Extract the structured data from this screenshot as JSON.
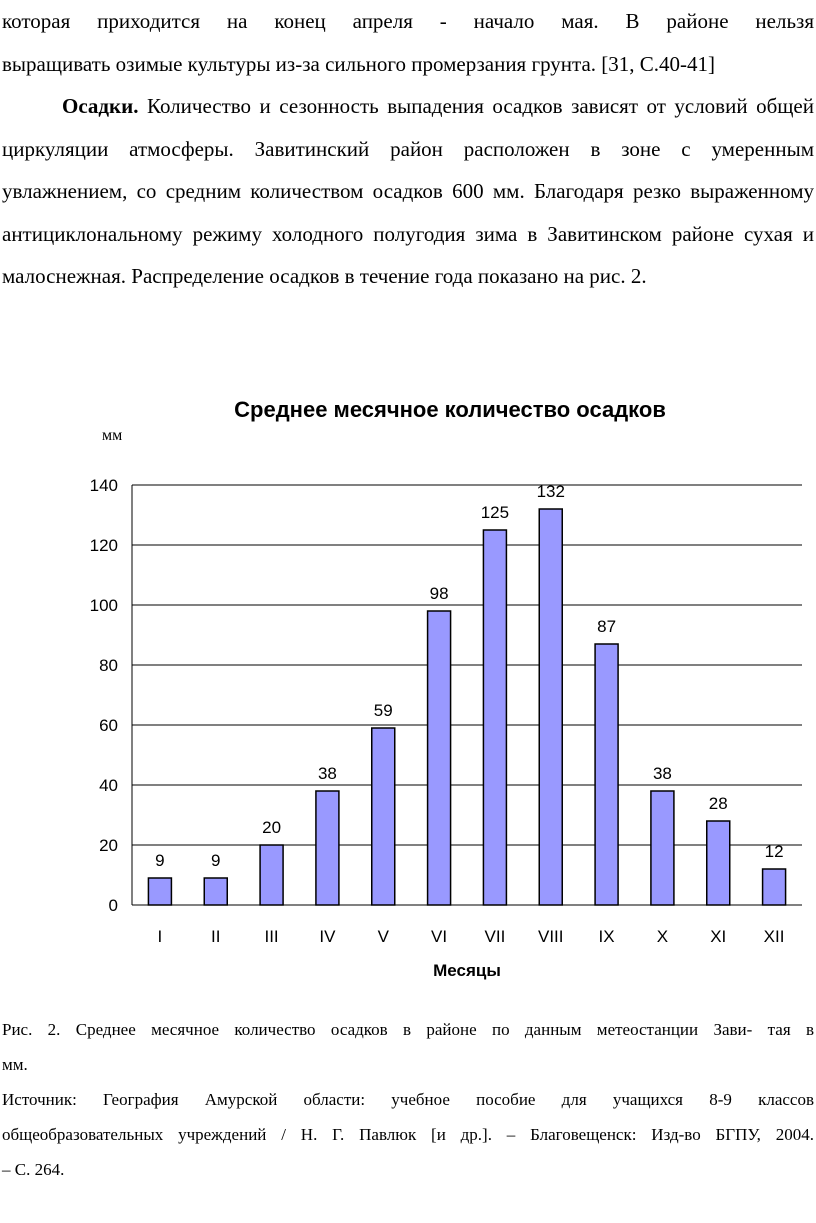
{
  "body": {
    "p1_lines": [
      "которая приходится на конец апреля - начало мая. В районе нельзя",
      "выращивать озимые культуры из-за сильного промерзания грунта. [31, С.40-41]"
    ],
    "p2_bold": "Осадки.",
    "p2_text": "Количество и сезонность выпадения осадков зависят от условий общей циркуляции атмосферы. Завитинский район расположен в зоне с умеренным увлажнением, со средним количеством осадков 600 мм. Благодаря резко выраженному антициклональному режиму холодного полугодия зима в Завитинском районе сухая и малоснежная. Распределение осадков в течение года показано на рис. 2."
  },
  "chart_data": {
    "type": "bar",
    "title": "Среднее месячное количество осадков",
    "ylabel": "мм",
    "xlabel": "Месяцы",
    "categories": [
      "I",
      "II",
      "III",
      "IV",
      "V",
      "VI",
      "VII",
      "VIII",
      "IX",
      "X",
      "XI",
      "XII"
    ],
    "values": [
      9,
      9,
      20,
      38,
      59,
      98,
      125,
      132,
      87,
      38,
      28,
      12
    ],
    "ylim": [
      0,
      140
    ],
    "yticks": [
      0,
      20,
      40,
      60,
      80,
      100,
      120,
      140
    ],
    "grid": true,
    "bar_color": "#9999ff",
    "data_labels": true
  },
  "caption": {
    "line1": "Рис. 2. Среднее месячное количество осадков в районе по данным метеостанции Зави-    тая в",
    "line2": "мм.",
    "source_line1": "Источник: География Амурской области: учебное пособие для учащихся          8-9 классов",
    "source_line2": "общеобразовательных учреждений / Н. Г. Павлюк [и др.]. – Благовещенск: Изд-во БГПУ, 2004.",
    "source_line3": "– С. 264."
  }
}
